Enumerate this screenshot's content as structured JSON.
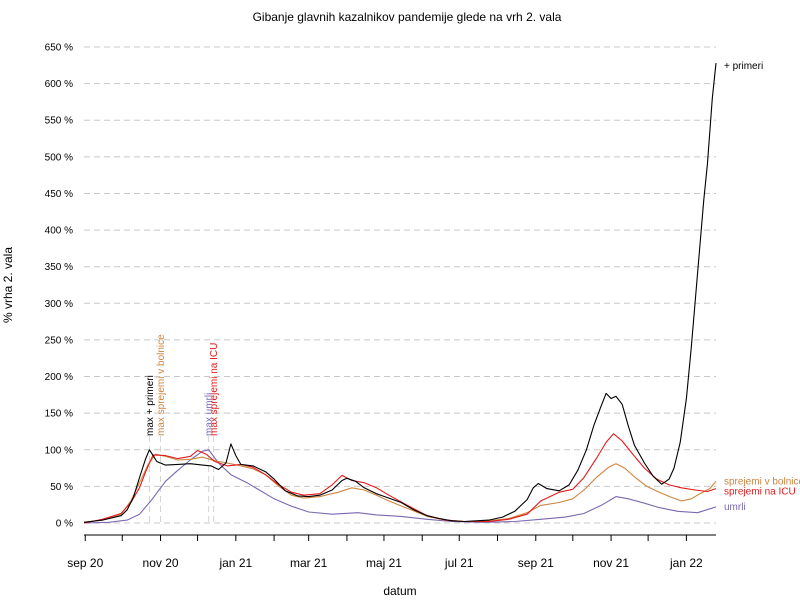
{
  "chart_data": {
    "type": "line",
    "title": "Gibanje glavnih kazalnikov pandemije glede na vrh 2. vala",
    "xlabel": "datum",
    "ylabel": "% vrha 2. vala",
    "x_range": [
      "2020-08-31",
      "2022-01-25"
    ],
    "ylim": [
      0,
      650
    ],
    "y_ticks": [
      0,
      50,
      100,
      150,
      200,
      250,
      300,
      350,
      400,
      450,
      500,
      550,
      600,
      650
    ],
    "y_tick_labels": [
      "0 %",
      "50 %",
      "100 %",
      "150 %",
      "200 %",
      "250 %",
      "300 %",
      "350 %",
      "400 %",
      "450 %",
      "500 %",
      "550 %",
      "600 %",
      "650 %"
    ],
    "x_ticks": [
      {
        "date": "2020-09-01",
        "label": "sep 20"
      },
      {
        "date": "2020-11-01",
        "label": "nov 20"
      },
      {
        "date": "2021-01-01",
        "label": "jan 21"
      },
      {
        "date": "2021-03-01",
        "label": "mar 21"
      },
      {
        "date": "2021-05-01",
        "label": "maj 21"
      },
      {
        "date": "2021-07-01",
        "label": "jul 21"
      },
      {
        "date": "2021-09-01",
        "label": "sep 21"
      },
      {
        "date": "2021-11-01",
        "label": "nov 21"
      },
      {
        "date": "2022-01-01",
        "label": "jan 22"
      }
    ],
    "grid": "horizontal dashed",
    "series": [
      {
        "name": "+ primeri",
        "color": "#000000",
        "points": [
          [
            "2020-08-31",
            1
          ],
          [
            "2020-09-15",
            4
          ],
          [
            "2020-09-30",
            10
          ],
          [
            "2020-10-05",
            18
          ],
          [
            "2020-10-10",
            35
          ],
          [
            "2020-10-15",
            62
          ],
          [
            "2020-10-20",
            88
          ],
          [
            "2020-10-23",
            100
          ],
          [
            "2020-10-26",
            92
          ],
          [
            "2020-10-29",
            84
          ],
          [
            "2020-11-05",
            79
          ],
          [
            "2020-11-15",
            80
          ],
          [
            "2020-11-25",
            81
          ],
          [
            "2020-12-05",
            79
          ],
          [
            "2020-12-12",
            78
          ],
          [
            "2020-12-18",
            73
          ],
          [
            "2020-12-24",
            82
          ],
          [
            "2020-12-28",
            108
          ],
          [
            "2021-01-01",
            92
          ],
          [
            "2021-01-05",
            80
          ],
          [
            "2021-01-15",
            78
          ],
          [
            "2021-01-25",
            70
          ],
          [
            "2021-02-01",
            60
          ],
          [
            "2021-02-10",
            44
          ],
          [
            "2021-02-20",
            37
          ],
          [
            "2021-03-01",
            36
          ],
          [
            "2021-03-10",
            38
          ],
          [
            "2021-03-20",
            45
          ],
          [
            "2021-03-28",
            58
          ],
          [
            "2021-04-01",
            61
          ],
          [
            "2021-04-08",
            57
          ],
          [
            "2021-04-15",
            48
          ],
          [
            "2021-04-25",
            40
          ],
          [
            "2021-05-05",
            34
          ],
          [
            "2021-05-15",
            28
          ],
          [
            "2021-05-25",
            18
          ],
          [
            "2021-06-05",
            10
          ],
          [
            "2021-06-15",
            6
          ],
          [
            "2021-06-25",
            3
          ],
          [
            "2021-07-05",
            2
          ],
          [
            "2021-07-15",
            3
          ],
          [
            "2021-07-25",
            4
          ],
          [
            "2021-08-05",
            8
          ],
          [
            "2021-08-15",
            16
          ],
          [
            "2021-08-25",
            32
          ],
          [
            "2021-08-30",
            48
          ],
          [
            "2021-09-03",
            54
          ],
          [
            "2021-09-10",
            47
          ],
          [
            "2021-09-20",
            44
          ],
          [
            "2021-09-28",
            52
          ],
          [
            "2021-10-05",
            72
          ],
          [
            "2021-10-12",
            100
          ],
          [
            "2021-10-18",
            133
          ],
          [
            "2021-10-24",
            160
          ],
          [
            "2021-10-28",
            177
          ],
          [
            "2021-11-01",
            170
          ],
          [
            "2021-11-05",
            173
          ],
          [
            "2021-11-10",
            162
          ],
          [
            "2021-11-15",
            132
          ],
          [
            "2021-11-20",
            106
          ],
          [
            "2021-11-28",
            82
          ],
          [
            "2021-12-05",
            64
          ],
          [
            "2021-12-12",
            53
          ],
          [
            "2021-12-18",
            60
          ],
          [
            "2021-12-22",
            75
          ],
          [
            "2021-12-27",
            110
          ],
          [
            "2022-01-01",
            170
          ],
          [
            "2022-01-05",
            240
          ],
          [
            "2022-01-10",
            340
          ],
          [
            "2022-01-15",
            440
          ],
          [
            "2022-01-18",
            490
          ],
          [
            "2022-01-22",
            580
          ],
          [
            "2022-01-25",
            628
          ]
        ]
      },
      {
        "name": "sprejemi v bolnice",
        "color": "#cd853f",
        "points": [
          [
            "2020-08-31",
            1
          ],
          [
            "2020-09-15",
            4
          ],
          [
            "2020-09-30",
            12
          ],
          [
            "2020-10-08",
            30
          ],
          [
            "2020-10-15",
            55
          ],
          [
            "2020-10-22",
            80
          ],
          [
            "2020-10-28",
            94
          ],
          [
            "2020-11-05",
            91
          ],
          [
            "2020-11-15",
            86
          ],
          [
            "2020-11-25",
            87
          ],
          [
            "2020-12-05",
            90
          ],
          [
            "2020-12-15",
            85
          ],
          [
            "2020-12-25",
            82
          ],
          [
            "2021-01-05",
            78
          ],
          [
            "2021-01-15",
            74
          ],
          [
            "2021-01-25",
            66
          ],
          [
            "2021-02-05",
            50
          ],
          [
            "2021-02-15",
            38
          ],
          [
            "2021-02-25",
            34
          ],
          [
            "2021-03-10",
            36
          ],
          [
            "2021-03-25",
            42
          ],
          [
            "2021-04-05",
            48
          ],
          [
            "2021-04-15",
            45
          ],
          [
            "2021-04-25",
            38
          ],
          [
            "2021-05-05",
            30
          ],
          [
            "2021-05-20",
            20
          ],
          [
            "2021-06-05",
            9
          ],
          [
            "2021-06-20",
            4
          ],
          [
            "2021-07-05",
            2
          ],
          [
            "2021-07-25",
            3
          ],
          [
            "2021-08-10",
            6
          ],
          [
            "2021-08-25",
            14
          ],
          [
            "2021-09-05",
            24
          ],
          [
            "2021-09-20",
            28
          ],
          [
            "2021-10-01",
            33
          ],
          [
            "2021-10-10",
            45
          ],
          [
            "2021-10-20",
            62
          ],
          [
            "2021-10-30",
            76
          ],
          [
            "2021-11-05",
            81
          ],
          [
            "2021-11-12",
            75
          ],
          [
            "2021-11-20",
            63
          ],
          [
            "2021-11-30",
            50
          ],
          [
            "2021-12-10",
            42
          ],
          [
            "2021-12-20",
            35
          ],
          [
            "2021-12-28",
            30
          ],
          [
            "2022-01-05",
            33
          ],
          [
            "2022-01-12",
            40
          ],
          [
            "2022-01-20",
            47
          ],
          [
            "2022-01-25",
            57
          ]
        ]
      },
      {
        "name": "sprejemi na ICU",
        "color": "#e41a1c",
        "points": [
          [
            "2020-08-31",
            0
          ],
          [
            "2020-09-15",
            5
          ],
          [
            "2020-09-30",
            13
          ],
          [
            "2020-10-08",
            28
          ],
          [
            "2020-10-15",
            48
          ],
          [
            "2020-10-20",
            70
          ],
          [
            "2020-10-26",
            93
          ],
          [
            "2020-11-05",
            92
          ],
          [
            "2020-11-15",
            88
          ],
          [
            "2020-11-25",
            91
          ],
          [
            "2020-12-01",
            99
          ],
          [
            "2020-12-08",
            94
          ],
          [
            "2020-12-15",
            84
          ],
          [
            "2020-12-25",
            78
          ],
          [
            "2021-01-05",
            80
          ],
          [
            "2021-01-15",
            76
          ],
          [
            "2021-01-25",
            66
          ],
          [
            "2021-02-05",
            52
          ],
          [
            "2021-02-15",
            42
          ],
          [
            "2021-02-25",
            38
          ],
          [
            "2021-03-10",
            40
          ],
          [
            "2021-03-20",
            52
          ],
          [
            "2021-03-28",
            65
          ],
          [
            "2021-04-05",
            58
          ],
          [
            "2021-04-15",
            55
          ],
          [
            "2021-04-25",
            48
          ],
          [
            "2021-05-05",
            38
          ],
          [
            "2021-05-20",
            24
          ],
          [
            "2021-06-05",
            10
          ],
          [
            "2021-06-20",
            4
          ],
          [
            "2021-07-05",
            2
          ],
          [
            "2021-07-25",
            2
          ],
          [
            "2021-08-10",
            5
          ],
          [
            "2021-08-25",
            12
          ],
          [
            "2021-09-05",
            30
          ],
          [
            "2021-09-20",
            42
          ],
          [
            "2021-10-01",
            46
          ],
          [
            "2021-10-10",
            62
          ],
          [
            "2021-10-20",
            88
          ],
          [
            "2021-10-28",
            110
          ],
          [
            "2021-11-03",
            122
          ],
          [
            "2021-11-10",
            112
          ],
          [
            "2021-11-18",
            95
          ],
          [
            "2021-11-28",
            75
          ],
          [
            "2021-12-08",
            60
          ],
          [
            "2021-12-18",
            52
          ],
          [
            "2021-12-28",
            48
          ],
          [
            "2022-01-08",
            45
          ],
          [
            "2022-01-18",
            43
          ],
          [
            "2022-01-25",
            47
          ]
        ]
      },
      {
        "name": "umrli",
        "color": "#7b68b0",
        "points": [
          [
            "2020-08-31",
            0
          ],
          [
            "2020-09-20",
            1
          ],
          [
            "2020-10-05",
            4
          ],
          [
            "2020-10-15",
            12
          ],
          [
            "2020-10-25",
            32
          ],
          [
            "2020-11-05",
            57
          ],
          [
            "2020-11-15",
            72
          ],
          [
            "2020-11-25",
            86
          ],
          [
            "2020-12-05",
            98
          ],
          [
            "2020-12-10",
            100
          ],
          [
            "2020-12-18",
            82
          ],
          [
            "2020-12-28",
            66
          ],
          [
            "2021-01-10",
            55
          ],
          [
            "2021-01-20",
            45
          ],
          [
            "2021-02-01",
            33
          ],
          [
            "2021-02-15",
            23
          ],
          [
            "2021-03-01",
            15
          ],
          [
            "2021-03-20",
            12
          ],
          [
            "2021-04-10",
            14
          ],
          [
            "2021-04-25",
            11
          ],
          [
            "2021-05-15",
            9
          ],
          [
            "2021-06-05",
            5
          ],
          [
            "2021-06-25",
            2
          ],
          [
            "2021-07-20",
            1
          ],
          [
            "2021-08-15",
            2
          ],
          [
            "2021-09-05",
            5
          ],
          [
            "2021-09-25",
            8
          ],
          [
            "2021-10-10",
            13
          ],
          [
            "2021-10-25",
            25
          ],
          [
            "2021-11-05",
            36
          ],
          [
            "2021-11-15",
            33
          ],
          [
            "2021-11-28",
            27
          ],
          [
            "2021-12-10",
            21
          ],
          [
            "2021-12-25",
            16
          ],
          [
            "2022-01-10",
            14
          ],
          [
            "2022-01-25",
            22
          ]
        ]
      }
    ],
    "markers": [
      {
        "label": "max + primeri",
        "date": "2020-10-23",
        "color": "#000000"
      },
      {
        "label": "max sprejemi v bolnice",
        "date": "2020-11-01",
        "color": "#cd853f"
      },
      {
        "label": "max umrli",
        "date": "2020-12-10",
        "color": "#7b68b0"
      },
      {
        "label": "max sprejemi na ICU",
        "date": "2020-12-14",
        "color": "#e41a1c"
      }
    ],
    "end_labels": [
      {
        "text": "+ primeri",
        "color": "#000000",
        "y": 628
      },
      {
        "text": "sprejemi v bolnice",
        "color": "#cd853f",
        "y": 57
      },
      {
        "text": "sprejemi na ICU",
        "color": "#e41a1c",
        "y": 43
      },
      {
        "text": "umrli",
        "color": "#7b68b0",
        "y": 22
      }
    ]
  }
}
